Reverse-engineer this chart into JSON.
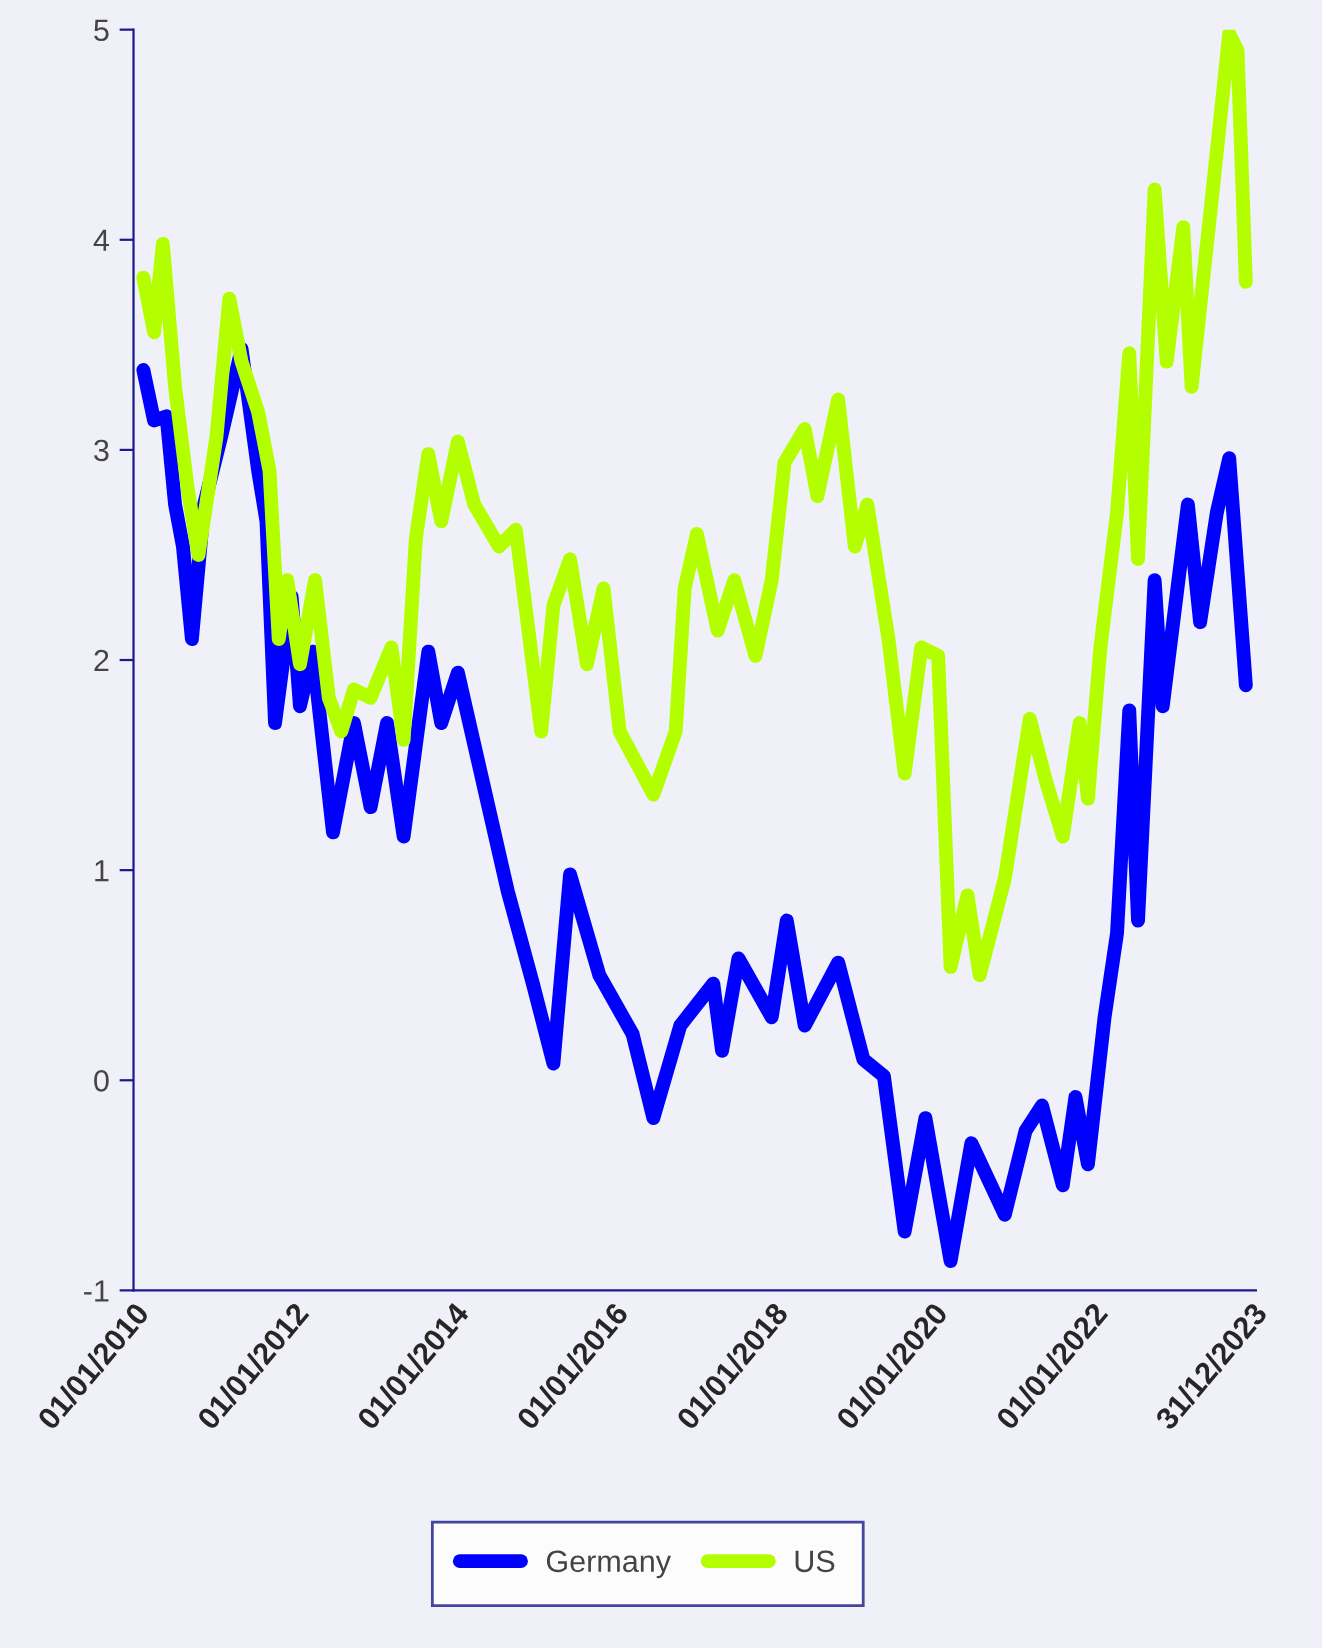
{
  "chart_data": {
    "type": "line",
    "xlim": [
      "2010-01-01",
      "2024-01-20"
    ],
    "ylim": [
      -1,
      5
    ],
    "yticks": [
      -1,
      0,
      1,
      2,
      3,
      4,
      5
    ],
    "xticks": [
      {
        "value": "2010-01-01",
        "label": "01/01/2010"
      },
      {
        "value": "2012-01-01",
        "label": "01/01/2012"
      },
      {
        "value": "2014-01-01",
        "label": "01/01/2014"
      },
      {
        "value": "2016-01-01",
        "label": "01/01/2016"
      },
      {
        "value": "2018-01-01",
        "label": "01/01/2018"
      },
      {
        "value": "2020-01-01",
        "label": "01/01/2020"
      },
      {
        "value": "2022-01-01",
        "label": "01/01/2022"
      },
      {
        "value": "2023-12-31",
        "label": "31/12/2023"
      }
    ],
    "grid": false,
    "legend": "bottom",
    "marker": "none",
    "line_style": "solid",
    "series": [
      {
        "name": "Germany",
        "color": "#0000ff",
        "x": [
          "2010-02-15",
          "2010-04-05",
          "2010-06-01",
          "2010-07-10",
          "2010-08-15",
          "2010-09-25",
          "2010-11-20",
          "2011-02-05",
          "2011-05-10",
          "2011-07-25",
          "2011-09-01",
          "2011-10-10",
          "2011-12-25",
          "2012-02-01",
          "2012-03-30",
          "2012-07-01",
          "2012-10-05",
          "2012-12-20",
          "2013-03-05",
          "2013-05-20",
          "2013-09-10",
          "2013-11-08",
          "2014-01-23",
          "2014-05-17",
          "2014-09-08",
          "2015-01-01",
          "2015-04-05",
          "2015-06-20",
          "2015-11-01",
          "2016-04-01",
          "2016-07-05",
          "2016-11-05",
          "2017-04-05",
          "2017-05-15",
          "2017-07-29",
          "2017-12-28",
          "2018-03-07",
          "2018-05-28",
          "2018-10-28",
          "2019-02-20",
          "2019-05-25",
          "2019-08-28",
          "2019-12-01",
          "2020-03-25",
          "2020-06-28",
          "2020-11-28",
          "2021-03-03",
          "2021-05-17",
          "2021-08-20",
          "2021-10-17",
          "2021-12-13",
          "2022-02-27",
          "2022-04-25",
          "2022-06-20",
          "2022-07-30",
          "2022-10-14",
          "2022-11-20",
          "2023-03-15",
          "2023-05-10",
          "2023-07-25",
          "2023-09-20",
          "2023-12-05"
        ],
        "values": [
          3.38,
          3.14,
          3.16,
          2.74,
          2.54,
          2.1,
          2.74,
          3.06,
          3.48,
          2.9,
          2.66,
          1.7,
          2.3,
          1.78,
          2.04,
          1.18,
          1.7,
          1.3,
          1.7,
          1.16,
          2.04,
          1.7,
          1.94,
          1.42,
          0.9,
          0.46,
          0.08,
          0.98,
          0.5,
          0.22,
          -0.18,
          0.26,
          0.46,
          0.14,
          0.58,
          0.3,
          0.76,
          0.26,
          0.56,
          0.1,
          0.02,
          -0.72,
          -0.18,
          -0.86,
          -0.3,
          -0.64,
          -0.24,
          -0.12,
          -0.5,
          -0.08,
          -0.4,
          0.3,
          0.7,
          1.76,
          0.76,
          2.38,
          1.78,
          2.74,
          2.18,
          2.7,
          2.96,
          1.88
        ]
      },
      {
        "name": "US",
        "color": "#b3ff00",
        "x": [
          "2010-02-15",
          "2010-04-05",
          "2010-05-15",
          "2010-07-10",
          "2010-09-05",
          "2010-10-25",
          "2011-01-15",
          "2011-03-15",
          "2011-05-10",
          "2011-07-25",
          "2011-09-15",
          "2011-10-27",
          "2011-12-05",
          "2012-02-01",
          "2012-04-10",
          "2012-06-12",
          "2012-08-08",
          "2012-10-05",
          "2012-12-20",
          "2013-03-25",
          "2013-05-20",
          "2013-07-15",
          "2013-09-10",
          "2013-11-08",
          "2014-01-23",
          "2014-04-08",
          "2014-07-30",
          "2014-10-15",
          "2015-02-08",
          "2015-04-05",
          "2015-06-20",
          "2015-09-05",
          "2015-11-20",
          "2016-02-02",
          "2016-07-05",
          "2016-10-15",
          "2016-11-25",
          "2017-01-20",
          "2017-04-25",
          "2017-07-10",
          "2017-10-15",
          "2017-12-28",
          "2018-02-25",
          "2018-05-28",
          "2018-07-25",
          "2018-10-28",
          "2019-01-12",
          "2019-03-10",
          "2019-06-15",
          "2019-08-28",
          "2019-11-12",
          "2020-01-28",
          "2020-03-25",
          "2020-06-10",
          "2020-08-05",
          "2020-11-28",
          "2021-03-22",
          "2021-06-05",
          "2021-08-20",
          "2021-11-05",
          "2021-12-13",
          "2022-02-08",
          "2022-04-25",
          "2022-06-20",
          "2022-07-30",
          "2022-10-14",
          "2022-12-08",
          "2023-02-22",
          "2023-04-01",
          "2023-07-05",
          "2023-09-20",
          "2023-10-28",
          "2023-12-05"
        ],
        "values": [
          3.82,
          3.56,
          3.98,
          3.3,
          2.82,
          2.5,
          3.06,
          3.72,
          3.42,
          3.18,
          2.9,
          2.1,
          2.38,
          1.98,
          2.38,
          1.82,
          1.66,
          1.86,
          1.82,
          2.06,
          1.62,
          2.58,
          2.98,
          2.66,
          3.04,
          2.74,
          2.54,
          2.62,
          1.66,
          2.26,
          2.48,
          1.98,
          2.34,
          1.66,
          1.36,
          1.66,
          2.34,
          2.6,
          2.14,
          2.38,
          2.02,
          2.38,
          2.94,
          3.1,
          2.78,
          3.24,
          2.54,
          2.74,
          2.1,
          1.46,
          2.06,
          2.02,
          0.54,
          0.88,
          0.5,
          0.96,
          1.72,
          1.42,
          1.16,
          1.7,
          1.34,
          2.06,
          2.7,
          3.46,
          2.48,
          4.24,
          3.42,
          4.06,
          3.3,
          4.22,
          4.98,
          4.9,
          3.8
        ]
      }
    ]
  }
}
